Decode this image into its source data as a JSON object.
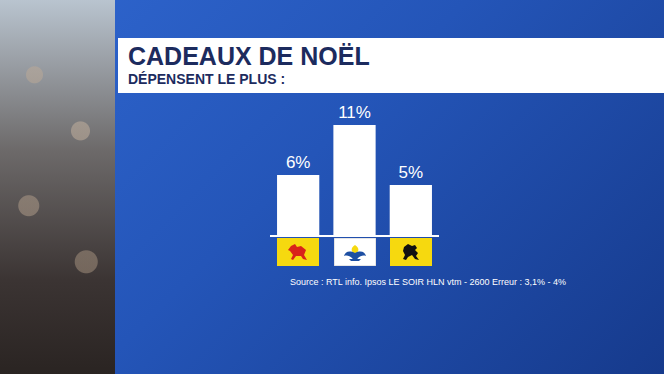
{
  "chart_data": {
    "type": "bar",
    "title": "CADEAUX DE NOËL",
    "subtitle": "DÉPENSENT LE PLUS :",
    "categories": [
      null,
      null,
      null
    ],
    "values": [
      6,
      11,
      5
    ],
    "value_labels": [
      "6%",
      "11%",
      "5%"
    ],
    "data_labels": true,
    "color": "#ffffff",
    "ylim": [
      0,
      11
    ],
    "tick_labels": false,
    "grid": false,
    "annotations": [
      "Source : RTL info. Ipsos LE SOIR HLN vtm - 2600 Erreur : 3,1% - 4%"
    ]
  }
}
